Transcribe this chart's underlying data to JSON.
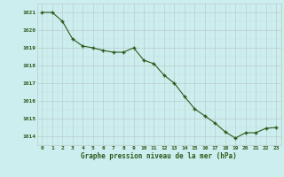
{
  "hours": [
    0,
    1,
    2,
    3,
    4,
    5,
    6,
    7,
    8,
    9,
    10,
    11,
    12,
    13,
    14,
    15,
    16,
    17,
    18,
    19,
    20,
    21,
    22,
    23
  ],
  "pressure": [
    1021.0,
    1021.0,
    1020.5,
    1019.5,
    1019.1,
    1019.0,
    1018.85,
    1018.75,
    1018.75,
    1019.0,
    1018.3,
    1018.1,
    1017.45,
    1017.0,
    1016.25,
    1015.55,
    1015.15,
    1014.75,
    1014.25,
    1013.9,
    1014.2,
    1014.2,
    1014.45,
    1014.5
  ],
  "line_color": "#2d5a1b",
  "marker_color": "#2d5a1b",
  "bg_color": "#cceeee",
  "grid_color": "#bbcccc",
  "grid_color_minor": "#ccdddd",
  "xlabel": "Graphe pression niveau de la mer (hPa)",
  "xlabel_color": "#2d5a1b",
  "tick_label_color": "#2d5a1b",
  "ylim": [
    1013.5,
    1021.5
  ],
  "yticks": [
    1014,
    1015,
    1016,
    1017,
    1018,
    1019,
    1020,
    1021
  ],
  "xticks": [
    0,
    1,
    2,
    3,
    4,
    5,
    6,
    7,
    8,
    9,
    10,
    11,
    12,
    13,
    14,
    15,
    16,
    17,
    18,
    19,
    20,
    21,
    22,
    23
  ]
}
